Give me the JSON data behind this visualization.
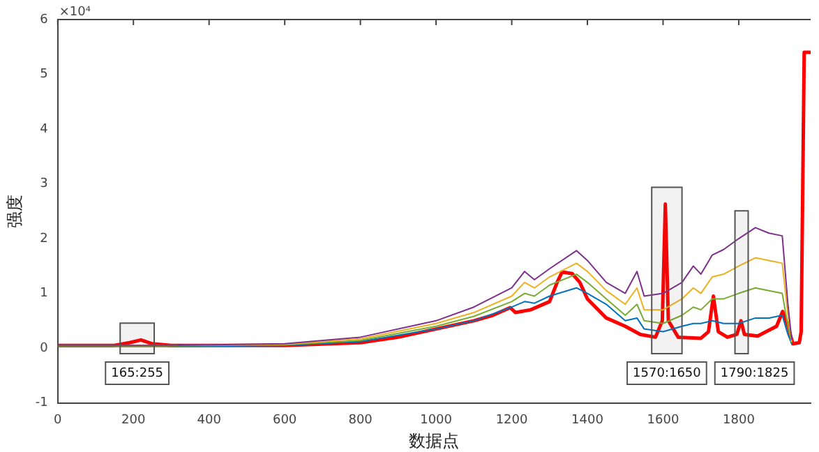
{
  "chart_data": {
    "type": "line",
    "xlabel": "数据点",
    "ylabel": "强度",
    "annotations": [
      "×10⁴"
    ],
    "xlim": [
      0,
      1990
    ],
    "xticks": [
      0,
      200,
      400,
      600,
      800,
      1000,
      1200,
      1400,
      1600,
      1800
    ],
    "ylim": [
      -1,
      6
    ],
    "yticks": [
      -1,
      0,
      1,
      2,
      3,
      4,
      5,
      6
    ],
    "grid": false,
    "marker": "none",
    "line_style": "solid",
    "bands": [
      {
        "axis": "x",
        "from": 165,
        "to": 255,
        "label": "165:255",
        "color": "#555555"
      },
      {
        "axis": "x",
        "from": 1570,
        "to": 1650,
        "label": "1570:1650",
        "color": "#555555"
      },
      {
        "axis": "x",
        "from": 1790,
        "to": 1825,
        "label": "1790:1825",
        "color": "#555555"
      }
    ],
    "series": [
      {
        "color": "#7e2f8e",
        "x": [
          0,
          300,
          600,
          800,
          1000,
          1100,
          1200,
          1234,
          1260,
          1300,
          1371,
          1400,
          1450,
          1500,
          1531,
          1550,
          1600,
          1650,
          1680,
          1700,
          1730,
          1760,
          1800,
          1844,
          1880,
          1915,
          1930,
          1940
        ],
        "values": [
          0.05,
          0.05,
          0.08,
          0.2,
          0.5,
          0.75,
          1.1,
          1.4,
          1.25,
          1.45,
          1.78,
          1.6,
          1.2,
          1.0,
          1.4,
          0.95,
          1.0,
          1.2,
          1.5,
          1.35,
          1.7,
          1.8,
          2.0,
          2.2,
          2.1,
          2.05,
          0.8,
          0.15
        ]
      },
      {
        "color": "#edb120",
        "x": [
          0,
          300,
          600,
          800,
          1000,
          1100,
          1200,
          1234,
          1260,
          1300,
          1371,
          1400,
          1450,
          1500,
          1531,
          1550,
          1600,
          1650,
          1680,
          1700,
          1730,
          1760,
          1800,
          1844,
          1880,
          1915,
          1930,
          1940
        ],
        "values": [
          0.05,
          0.05,
          0.07,
          0.17,
          0.45,
          0.65,
          0.95,
          1.2,
          1.1,
          1.3,
          1.55,
          1.4,
          1.05,
          0.8,
          1.1,
          0.7,
          0.7,
          0.9,
          1.1,
          1.0,
          1.3,
          1.35,
          1.5,
          1.65,
          1.6,
          1.55,
          0.6,
          0.12
        ]
      },
      {
        "color": "#77ac30",
        "x": [
          0,
          300,
          600,
          800,
          1000,
          1100,
          1200,
          1234,
          1260,
          1300,
          1371,
          1400,
          1450,
          1500,
          1531,
          1550,
          1600,
          1650,
          1680,
          1700,
          1730,
          1760,
          1800,
          1844,
          1880,
          1915,
          1930,
          1940
        ],
        "values": [
          0.04,
          0.04,
          0.06,
          0.14,
          0.4,
          0.58,
          0.85,
          1.0,
          0.95,
          1.15,
          1.35,
          1.2,
          0.9,
          0.6,
          0.8,
          0.5,
          0.45,
          0.6,
          0.75,
          0.7,
          0.9,
          0.9,
          1.0,
          1.1,
          1.05,
          1.0,
          0.4,
          0.1
        ]
      },
      {
        "color": "#0072bd",
        "x": [
          0,
          300,
          600,
          800,
          1000,
          1100,
          1200,
          1234,
          1260,
          1300,
          1371,
          1400,
          1450,
          1500,
          1531,
          1550,
          1600,
          1650,
          1680,
          1700,
          1730,
          1760,
          1800,
          1844,
          1880,
          1915,
          1930,
          1940
        ],
        "values": [
          0.03,
          0.03,
          0.05,
          0.12,
          0.35,
          0.5,
          0.75,
          0.85,
          0.82,
          0.95,
          1.1,
          1.0,
          0.8,
          0.5,
          0.55,
          0.35,
          0.3,
          0.4,
          0.45,
          0.45,
          0.5,
          0.45,
          0.45,
          0.55,
          0.55,
          0.6,
          0.25,
          0.08
        ]
      },
      {
        "color": "#ff0000",
        "x": [
          0,
          150,
          190,
          220,
          250,
          300,
          600,
          800,
          900,
          1000,
          1100,
          1150,
          1196,
          1210,
          1250,
          1300,
          1320,
          1333,
          1360,
          1380,
          1400,
          1450,
          1500,
          1540,
          1580,
          1598,
          1606,
          1614,
          1640,
          1700,
          1720,
          1733,
          1746,
          1770,
          1795,
          1806,
          1815,
          1850,
          1900,
          1916,
          1930,
          1943,
          1960,
          1965,
          1973,
          1990
        ],
        "values": [
          0.05,
          0.05,
          0.1,
          0.15,
          0.08,
          0.05,
          0.05,
          0.1,
          0.2,
          0.35,
          0.5,
          0.6,
          0.74,
          0.65,
          0.7,
          0.85,
          1.2,
          1.39,
          1.36,
          1.2,
          0.9,
          0.55,
          0.4,
          0.25,
          0.2,
          0.5,
          2.63,
          0.5,
          0.2,
          0.18,
          0.3,
          0.95,
          0.3,
          0.2,
          0.25,
          0.5,
          0.25,
          0.22,
          0.4,
          0.67,
          0.4,
          0.08,
          0.1,
          0.3,
          5.4,
          5.4
        ]
      }
    ]
  }
}
